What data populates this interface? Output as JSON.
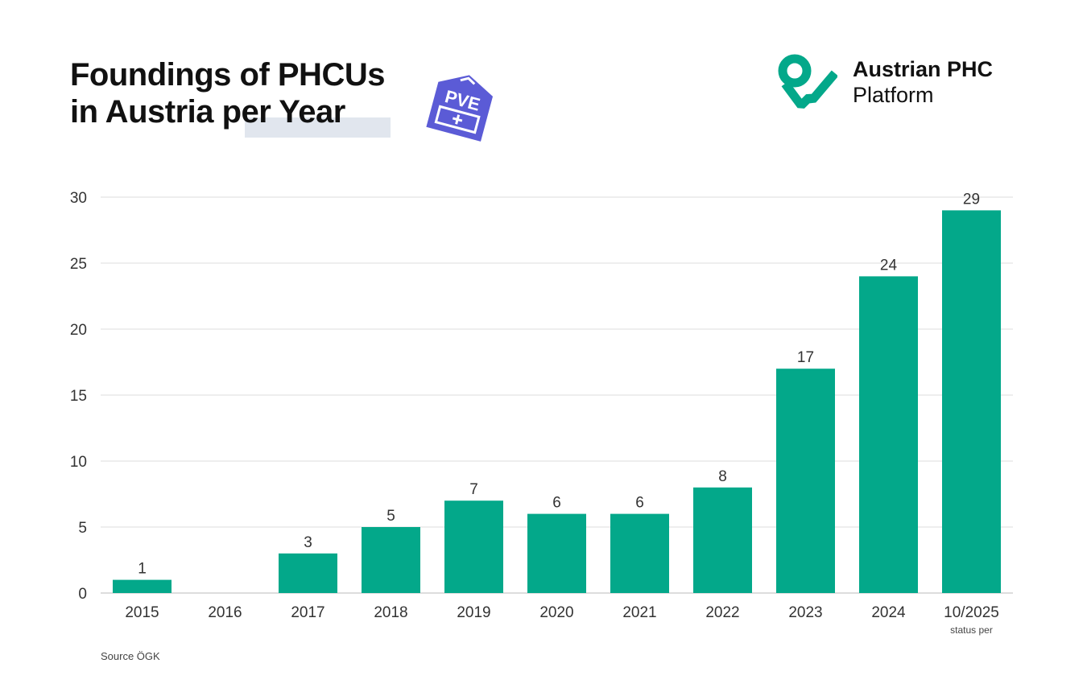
{
  "header": {
    "title_line1": "Foundings of PHCUs",
    "title_line2": "in Austria per Year",
    "badge_text": "PVE",
    "brand_line1": "Austrian PHC",
    "brand_line2": "Platform"
  },
  "colors": {
    "bar": "#03a88a",
    "badge": "#5b5bd6",
    "grid": "#dddddd"
  },
  "chart_data": {
    "type": "bar",
    "title": "Foundings of PHCUs in Austria per Year",
    "xlabel": "",
    "ylabel": "",
    "categories": [
      "2015",
      "2016",
      "2017",
      "2018",
      "2019",
      "2020",
      "2021",
      "2022",
      "2023",
      "2024",
      "10/2025"
    ],
    "values": [
      1,
      0,
      3,
      5,
      7,
      6,
      6,
      8,
      17,
      24,
      29
    ],
    "value_labels": [
      "1",
      "",
      "3",
      "5",
      "7",
      "6",
      "6",
      "8",
      "17",
      "24",
      "29"
    ],
    "ylim": [
      0,
      30
    ],
    "yticks": [
      0,
      5,
      10,
      15,
      20,
      25,
      30
    ],
    "grid": true,
    "annotations": [
      "status per"
    ]
  },
  "footer": {
    "source": "Source ÖGK"
  }
}
